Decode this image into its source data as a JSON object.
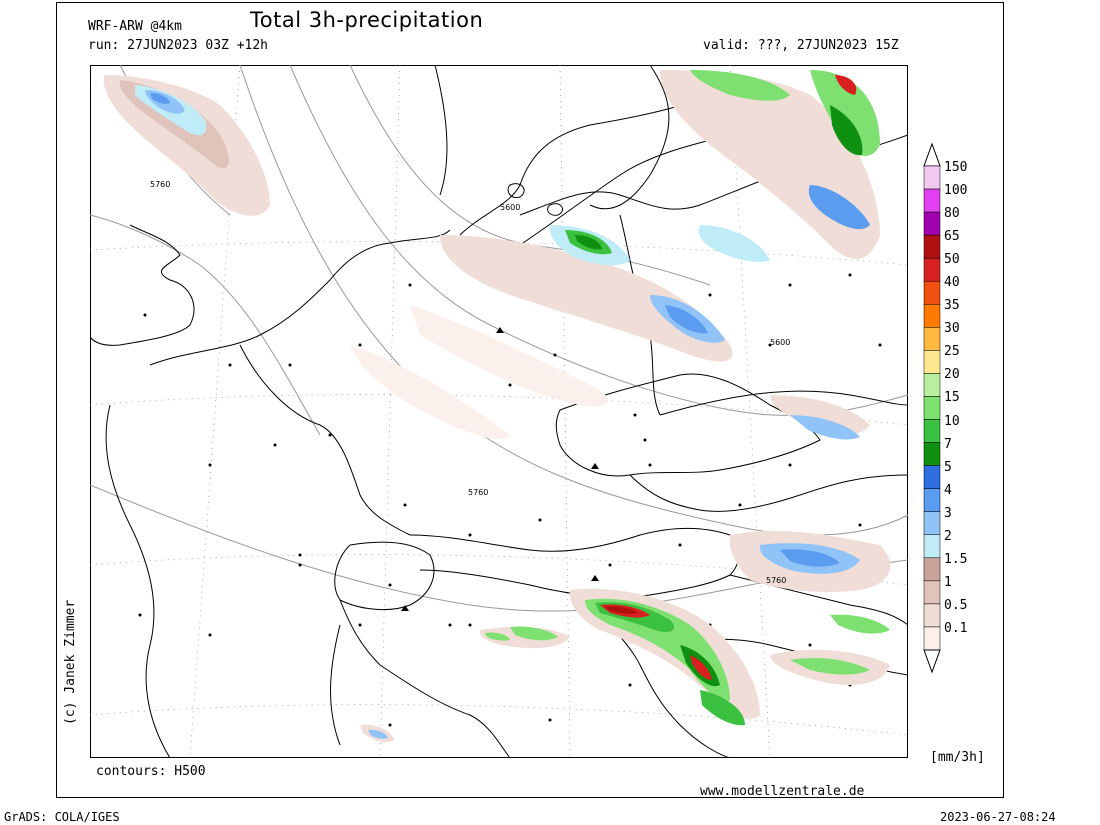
{
  "header": {
    "model": "WRF-ARW @4km",
    "title": "Total 3h-precipitation",
    "run": "run: 27JUN2023 03Z +12h",
    "valid": "valid: ???, 27JUN2023 15Z"
  },
  "footer": {
    "contours": "contours: H500",
    "website": "www.modellzentrale.de",
    "grads": "GrADS: COLA/IGES",
    "timestamp": "2023-06-27-08:24",
    "copyright": "(c) Janek Zimmer"
  },
  "legend": {
    "units": "[mm/3h]",
    "levels": [
      {
        "label": "150",
        "color": "#f0c8f0"
      },
      {
        "label": "100",
        "color": "#e040f0"
      },
      {
        "label": "80",
        "color": "#a000b0"
      },
      {
        "label": "65",
        "color": "#b01010"
      },
      {
        "label": "50",
        "color": "#d82020"
      },
      {
        "label": "40",
        "color": "#f05010"
      },
      {
        "label": "35",
        "color": "#ff7a00"
      },
      {
        "label": "30",
        "color": "#ffb840"
      },
      {
        "label": "25",
        "color": "#ffe890"
      },
      {
        "label": "20",
        "color": "#b8f0a0"
      },
      {
        "label": "15",
        "color": "#7ee070"
      },
      {
        "label": "10",
        "color": "#3cc040"
      },
      {
        "label": "7",
        "color": "#109010"
      },
      {
        "label": "5",
        "color": "#2e6ee0"
      },
      {
        "label": "4",
        "color": "#5a9cf0"
      },
      {
        "label": "3",
        "color": "#90c4f8"
      },
      {
        "label": "2",
        "color": "#c0ecf8"
      },
      {
        "label": "1.5",
        "color": "#c9a498"
      },
      {
        "label": "1",
        "color": "#e0c4bc"
      },
      {
        "label": "0.5",
        "color": "#f0ddd8"
      },
      {
        "label": "0.1",
        "color": "#fbf0ec"
      }
    ]
  },
  "contour_labels": [
    "5760",
    "5600",
    "5600",
    "5760",
    "5760"
  ]
}
